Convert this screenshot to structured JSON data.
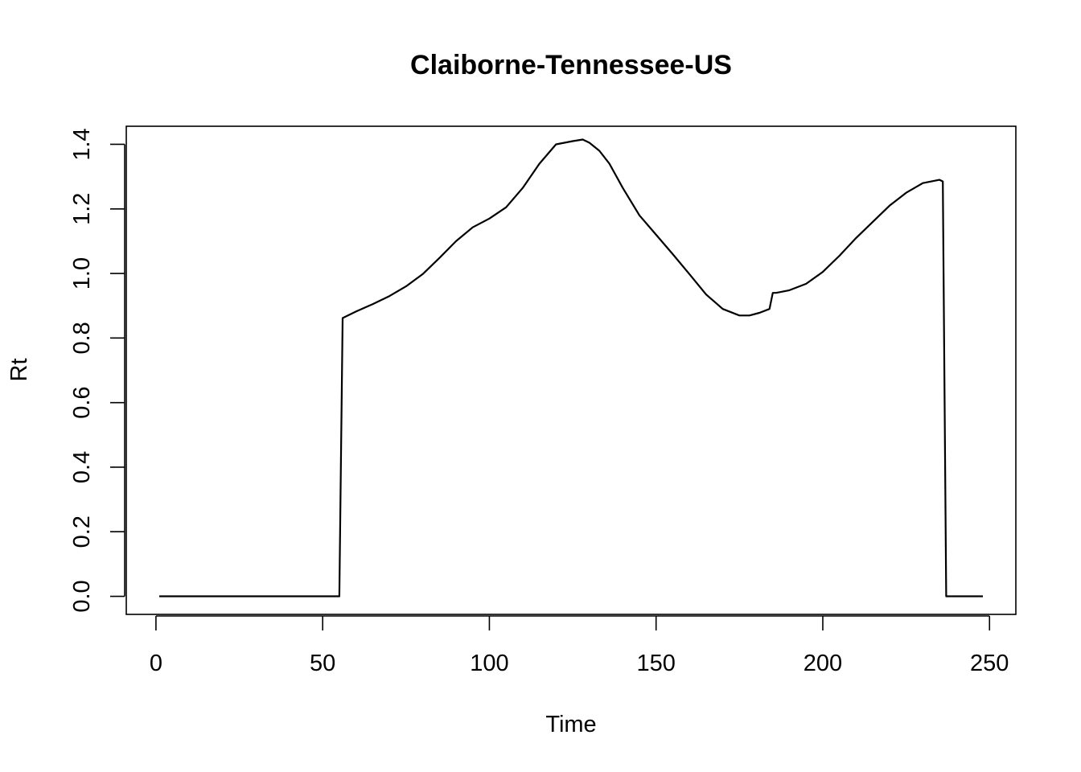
{
  "chart_data": {
    "type": "line",
    "title": "Claiborne-Tennessee-US",
    "xlabel": "Time",
    "ylabel": "Rt",
    "xlim": [
      -8.9,
      257.9
    ],
    "ylim": [
      -0.056,
      1.456
    ],
    "xticks": [
      0,
      50,
      100,
      150,
      200,
      250
    ],
    "yticks": [
      0.0,
      0.2,
      0.4,
      0.6,
      0.8,
      1.0,
      1.2,
      1.4
    ],
    "xtick_labels": [
      "0",
      "50",
      "100",
      "150",
      "200",
      "250"
    ],
    "ytick_labels": [
      "0.0",
      "0.2",
      "0.4",
      "0.6",
      "0.8",
      "1.0",
      "1.2",
      "1.4"
    ],
    "grid": false,
    "series": [
      {
        "color": "#000000",
        "x": [
          1,
          55,
          56,
          60,
          65,
          70,
          75,
          80,
          85,
          90,
          95,
          100,
          105,
          110,
          115,
          120,
          125,
          128,
          130,
          133,
          136,
          140,
          145,
          150,
          155,
          160,
          165,
          170,
          175,
          178,
          181,
          184,
          185,
          186,
          190,
          195,
          200,
          205,
          210,
          215,
          220,
          225,
          230,
          235,
          236,
          237,
          248
        ],
        "y": [
          0.0,
          0.0,
          0.862,
          0.882,
          0.905,
          0.93,
          0.96,
          0.998,
          1.048,
          1.1,
          1.143,
          1.17,
          1.205,
          1.265,
          1.34,
          1.4,
          1.41,
          1.415,
          1.405,
          1.38,
          1.34,
          1.265,
          1.18,
          1.12,
          1.06,
          0.998,
          0.935,
          0.89,
          0.87,
          0.87,
          0.878,
          0.89,
          0.94,
          0.94,
          0.948,
          0.968,
          1.005,
          1.055,
          1.11,
          1.16,
          1.21,
          1.25,
          1.28,
          1.29,
          1.285,
          0.0,
          0.0
        ]
      }
    ]
  }
}
